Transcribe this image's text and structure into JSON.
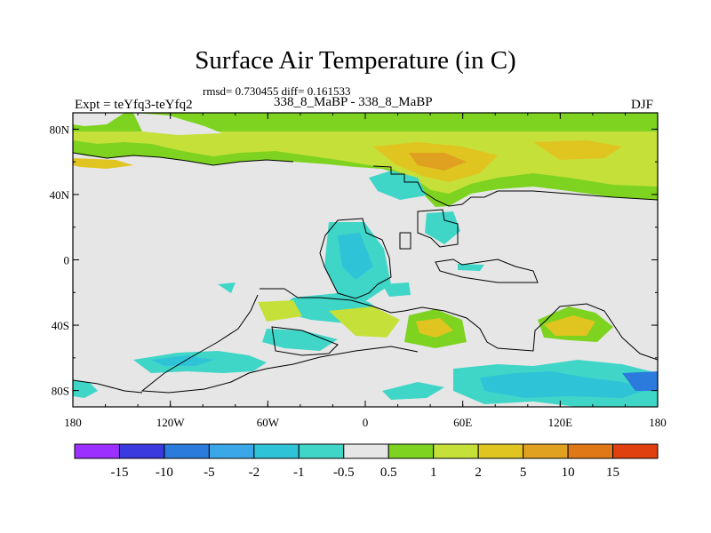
{
  "title": "Surface Air Temperature (in C)",
  "stats_line": "rmsd= 0.730455 diff= 0.161533",
  "experiment_label": "Expt = teYfq3-teYfq2",
  "runs_label": "338_8_MaBP - 338_8_MaBP",
  "season_label": "DJF",
  "map": {
    "projection": "cylindrical equidistant",
    "lon_range": [
      -180,
      180
    ],
    "lat_range": [
      -90,
      90
    ],
    "x_tick_labels": [
      "180",
      "120W",
      "60W",
      "0",
      "60E",
      "120E",
      "180"
    ],
    "y_tick_labels": [
      "80N",
      "40N",
      "0",
      "40S",
      "80S"
    ],
    "background_color": "#e6e6e6"
  },
  "colorbar": {
    "colors": [
      "#9b30ff",
      "#3a3adf",
      "#2b7bdc",
      "#3aa7e8",
      "#2fc3d8",
      "#3fd6c8",
      "#e6e6e6",
      "#7ed321",
      "#c6e03a",
      "#e0c420",
      "#e0a020",
      "#e07818",
      "#e04010"
    ],
    "labels": [
      "-15",
      "-10",
      "-5",
      "-2",
      "-1",
      "-0.5",
      "0.5",
      "1",
      "2",
      "5",
      "10",
      "15"
    ]
  }
}
